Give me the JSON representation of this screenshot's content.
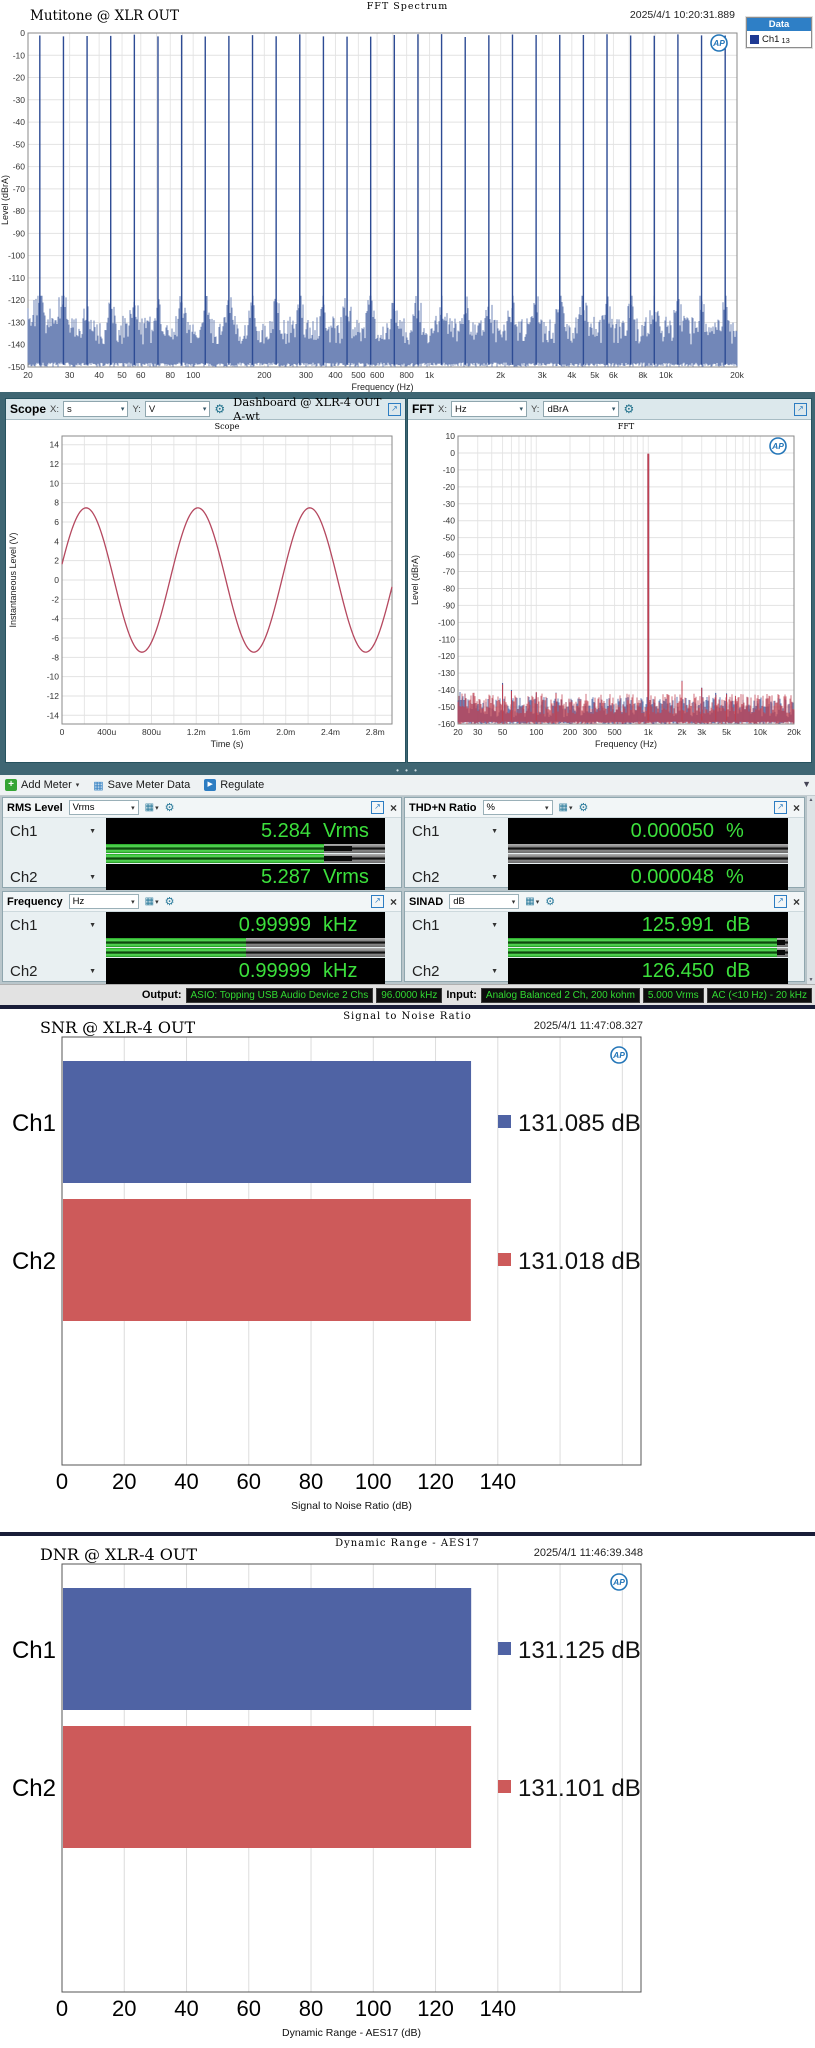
{
  "icons": {
    "dropdown": "▾",
    "channel_dropdown": "▼",
    "gear": "⚙",
    "popout": "↗",
    "close": "×",
    "add_plus": "+",
    "save": "▦",
    "regulate": "▶",
    "meter_bars": "▦",
    "overflow": "▼",
    "splitter_dots": "• • •",
    "scroll_up": "▲",
    "scroll_down": "▼",
    "ap_logo": "AP"
  },
  "colors": {
    "ch1_blue": "#4f63a4",
    "ch2_red": "#cd5a5a",
    "trace_blue": "#2d4b94",
    "trace_red": "#c04050",
    "meter_green": "#3ce03c",
    "legend_header_blue": "#2e7fc6",
    "chrome_teal": "#3f6673"
  },
  "spectrum_panel": {
    "window_title": "FFT Spectrum",
    "measurement_label": "Mutitone @ XLR OUT",
    "timestamp": "2025/4/1 10:20:31.889",
    "legend": {
      "header": "Data",
      "series": "Ch1",
      "series_sub": "13"
    }
  },
  "scope_panel": {
    "name": "Scope",
    "x_prefix": "X:",
    "x_unit": "s",
    "y_prefix": "Y:",
    "y_unit": "V",
    "dashboard_label": "Dashboard @ XLR-4 OUT A-wt"
  },
  "fft_panel": {
    "name": "FFT",
    "x_prefix": "X:",
    "x_unit": "Hz",
    "y_prefix": "Y:",
    "y_unit": "dBrA"
  },
  "meter_toolbar": {
    "add_meter": "Add Meter",
    "save_meter_data": "Save Meter Data",
    "regulate": "Regulate"
  },
  "meters": [
    {
      "title": "RMS Level",
      "unit": "Vrms",
      "rows": [
        {
          "ch": "Ch1",
          "value": "5.284",
          "unit": "Vrms",
          "bar_pct": 78,
          "notch_pct": 88
        },
        {
          "ch": "Ch2",
          "value": "5.287",
          "unit": "Vrms",
          "bar_pct": 78,
          "notch_pct": 88
        }
      ]
    },
    {
      "title": "THD+N Ratio",
      "unit": "%",
      "rows": [
        {
          "ch": "Ch1",
          "value": "0.000050",
          "unit": "%",
          "bar_pct": 0,
          "notch_pct": 0
        },
        {
          "ch": "Ch2",
          "value": "0.000048",
          "unit": "%",
          "bar_pct": 0,
          "notch_pct": 0
        }
      ]
    },
    {
      "title": "Frequency",
      "unit": "Hz",
      "rows": [
        {
          "ch": "Ch1",
          "value": "0.99999",
          "unit": "kHz",
          "bar_pct": 50,
          "notch_pct": 0
        },
        {
          "ch": "Ch2",
          "value": "0.99999",
          "unit": "kHz",
          "bar_pct": 50,
          "notch_pct": 0
        }
      ]
    },
    {
      "title": "SINAD",
      "unit": "dB",
      "rows": [
        {
          "ch": "Ch1",
          "value": "125.991",
          "unit": "dB",
          "bar_pct": 96,
          "notch_pct": 99
        },
        {
          "ch": "Ch2",
          "value": "126.450",
          "unit": "dB",
          "bar_pct": 96,
          "notch_pct": 99
        }
      ]
    }
  ],
  "status_bar": {
    "output_label": "Output:",
    "output_items": [
      "ASIO: Topping USB Audio Device 2 Chs",
      "96.0000 kHz"
    ],
    "input_label": "Input:",
    "input_items": [
      "Analog Balanced 2 Ch, 200 kohm",
      "5.000 Vrms",
      "AC (<10 Hz) - 20 kHz"
    ]
  },
  "chart_data": [
    {
      "id": "spectrum",
      "type": "line",
      "x_scale": "log",
      "title": "FFT Spectrum",
      "ylabel": "Level (dBrA)",
      "xlabel": "Frequency (Hz)",
      "x_range": [
        20,
        20000
      ],
      "y_range": [
        -150,
        0
      ],
      "yticks": [
        0,
        -10,
        -20,
        -30,
        -40,
        -50,
        -60,
        -70,
        -80,
        -90,
        -100,
        -110,
        -120,
        -130,
        -140,
        -150
      ],
      "xtick_labels": [
        "20",
        "30",
        "40",
        "50",
        "60",
        "80",
        "100",
        "200",
        "300",
        "400",
        "500",
        "600",
        "800",
        "1k",
        "2k",
        "3k",
        "4k",
        "5k",
        "6k",
        "8k",
        "10k",
        "20k"
      ],
      "xtick_values": [
        20,
        30,
        40,
        50,
        60,
        80,
        100,
        200,
        300,
        400,
        500,
        600,
        800,
        1000,
        2000,
        3000,
        4000,
        5000,
        6000,
        8000,
        10000,
        20000
      ],
      "series": [
        {
          "name": "Ch1",
          "color": "#2d4b94"
        }
      ],
      "content": {
        "kind": "multitone",
        "tone_count": 30,
        "tone_peak_db": -1,
        "noise_floor_db": [
          -150,
          -127
        ]
      }
    },
    {
      "id": "scope",
      "type": "line",
      "x_scale": "linear",
      "title": "Scope",
      "ylabel": "Instantaneous Level (V)",
      "xlabel": "Time (s)",
      "x_range_ms": [
        0,
        2.95
      ],
      "y_range": [
        -14.9,
        14.9
      ],
      "yticks": [
        14,
        12,
        10,
        8,
        6,
        4,
        2,
        0,
        -2,
        -4,
        -6,
        -8,
        -10,
        -12,
        -14
      ],
      "xtick_labels": [
        "0",
        "400u",
        "800u",
        "1.2m",
        "1.6m",
        "2.0m",
        "2.4m",
        "2.8m"
      ],
      "xtick_values_ms": [
        0,
        0.4,
        0.8,
        1.2,
        1.6,
        2.0,
        2.4,
        2.8
      ],
      "series": [
        {
          "name": "Ch1",
          "color": "#b5485f",
          "amplitude_v": 7.47,
          "frequency_hz": 1000,
          "phase_rad": 0.22
        }
      ]
    },
    {
      "id": "fft",
      "type": "line",
      "x_scale": "log",
      "title": "FFT",
      "ylabel": "Level (dBrA)",
      "xlabel": "Frequency (Hz)",
      "x_range": [
        20,
        20000
      ],
      "y_range": [
        -160,
        10
      ],
      "yticks": [
        10,
        0,
        -10,
        -20,
        -30,
        -40,
        -50,
        -60,
        -70,
        -80,
        -90,
        -100,
        -110,
        -120,
        -130,
        -140,
        -150,
        -160
      ],
      "xtick_labels": [
        "20",
        "30",
        "50",
        "100",
        "200",
        "300",
        "500",
        "1k",
        "2k",
        "3k",
        "5k",
        "10k",
        "20k"
      ],
      "xtick_values": [
        20,
        30,
        50,
        100,
        200,
        300,
        500,
        1000,
        2000,
        3000,
        5000,
        10000,
        20000
      ],
      "spurs": [
        [
          50,
          -137
        ],
        [
          60,
          -139
        ],
        [
          100,
          -140
        ],
        [
          150,
          -142
        ],
        [
          2000,
          -135
        ],
        [
          3000,
          -139
        ],
        [
          4000,
          -143
        ],
        [
          5000,
          -141
        ],
        [
          6000,
          -144
        ]
      ],
      "series": [
        {
          "name": "Ch1",
          "color": "#3a539b",
          "fundamental_hz": 1000,
          "fundamental_db": -0.8,
          "noise_floor_top_db": -144
        },
        {
          "name": "Ch2",
          "color": "#c04050",
          "fundamental_hz": 1000,
          "fundamental_db": -0.4,
          "noise_floor_top_db": -142
        }
      ]
    },
    {
      "id": "snr",
      "type": "bar",
      "orientation": "horizontal",
      "title": "Signal to Noise Ratio",
      "panel_label": "SNR @ XLR-4 OUT",
      "timestamp": "2025/4/1 11:47:08.327",
      "categories": [
        "Ch1",
        "Ch2"
      ],
      "values": [
        131.085,
        131.018
      ],
      "value_labels": [
        "131.085 dB",
        "131.018 dB"
      ],
      "bar_colors": [
        "#4f63a4",
        "#cd5a5a"
      ],
      "xticks": [
        0,
        20,
        40,
        60,
        80,
        100,
        120,
        140
      ],
      "xlabel": "Signal to Noise Ratio (dB)",
      "xlim": [
        0,
        186
      ]
    },
    {
      "id": "dnr",
      "type": "bar",
      "orientation": "horizontal",
      "title": "Dynamic Range - AES17",
      "panel_label": "DNR @ XLR-4 OUT",
      "timestamp": "2025/4/1 11:46:39.348",
      "categories": [
        "Ch1",
        "Ch2"
      ],
      "values": [
        131.125,
        131.101
      ],
      "value_labels": [
        "131.125 dB",
        "131.101 dB"
      ],
      "bar_colors": [
        "#4f63a4",
        "#cd5a5a"
      ],
      "xticks": [
        0,
        20,
        40,
        60,
        80,
        100,
        120,
        140
      ],
      "xlabel": "Dynamic Range - AES17 (dB)",
      "xlim": [
        0,
        186
      ]
    }
  ]
}
